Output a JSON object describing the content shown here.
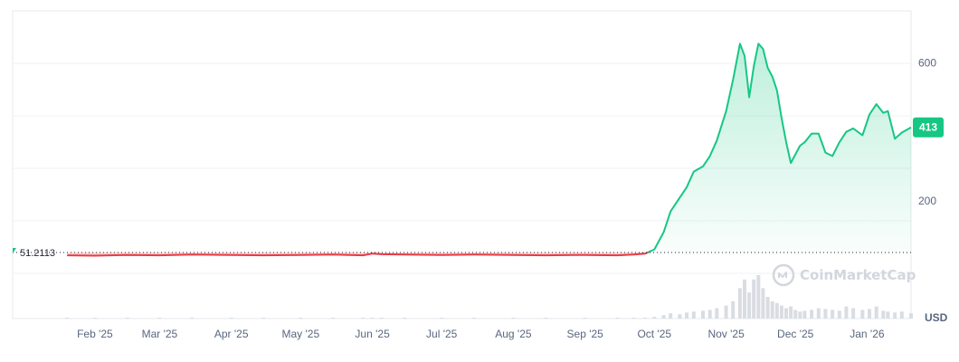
{
  "watermark": "CoinMarketCap",
  "currency": "USD",
  "colors": {
    "up": "#16c784",
    "down": "#ea3943",
    "grid": "#eff2f5",
    "frame": "#e6e9ee",
    "volume": "#d9dde3"
  },
  "chart_data": {
    "type": "line",
    "baseline": {
      "value": 51.2113,
      "label": "51.2113"
    },
    "current_price": {
      "value": 413,
      "label": "413"
    },
    "ylim": [
      -140,
      750
    ],
    "y_ticks": [
      {
        "value": 200,
        "label": "200"
      },
      {
        "value": 600,
        "label": "600"
      }
    ],
    "x_ticks": [
      {
        "date": "2025-02-01",
        "label": "Feb '25"
      },
      {
        "date": "2025-03-01",
        "label": "Mar '25"
      },
      {
        "date": "2025-04-01",
        "label": "Apr '25"
      },
      {
        "date": "2025-05-01",
        "label": "May '25"
      },
      {
        "date": "2025-06-01",
        "label": "Jun '25"
      },
      {
        "date": "2025-07-01",
        "label": "Jul '25"
      },
      {
        "date": "2025-08-01",
        "label": "Aug '25"
      },
      {
        "date": "2025-09-01",
        "label": "Sep '25"
      },
      {
        "date": "2025-10-01",
        "label": "Oct '25"
      },
      {
        "date": "2025-11-01",
        "label": "Nov '25"
      },
      {
        "date": "2025-12-01",
        "label": "Dec '25"
      },
      {
        "date": "2026-01-01",
        "label": "Jan '26"
      }
    ],
    "xlim": [
      "2025-01-16",
      "2026-01-20"
    ],
    "series": [
      {
        "x": [
          "2025-01-20",
          "2025-02-01",
          "2025-02-15",
          "2025-03-01",
          "2025-03-15",
          "2025-04-01",
          "2025-04-15",
          "2025-05-01",
          "2025-05-15",
          "2025-05-28",
          "2025-06-01",
          "2025-06-05",
          "2025-06-15",
          "2025-07-01",
          "2025-07-15",
          "2025-08-01",
          "2025-08-15",
          "2025-09-01",
          "2025-09-15",
          "2025-09-22",
          "2025-09-27",
          "2025-10-01",
          "2025-10-05",
          "2025-10-08",
          "2025-10-12",
          "2025-10-15",
          "2025-10-18",
          "2025-10-22",
          "2025-10-25",
          "2025-10-28",
          "2025-11-01",
          "2025-11-04",
          "2025-11-07",
          "2025-11-09",
          "2025-11-11",
          "2025-11-13",
          "2025-11-15",
          "2025-11-17",
          "2025-11-19",
          "2025-11-21",
          "2025-11-23",
          "2025-11-25",
          "2025-11-27",
          "2025-11-29",
          "2025-12-01",
          "2025-12-03",
          "2025-12-05",
          "2025-12-08",
          "2025-12-11",
          "2025-12-14",
          "2025-12-17",
          "2025-12-20",
          "2025-12-23",
          "2025-12-26",
          "2025-12-30",
          "2026-01-02",
          "2026-01-05",
          "2026-01-08",
          "2026-01-10",
          "2026-01-13",
          "2026-01-16",
          "2026-01-20"
        ],
        "y": [
          43,
          42,
          44,
          43,
          45,
          44,
          43,
          44,
          45,
          43,
          48,
          46,
          45,
          44,
          45,
          44,
          43,
          44,
          43,
          45,
          48,
          60,
          110,
          170,
          210,
          240,
          285,
          300,
          330,
          375,
          460,
          550,
          655,
          620,
          500,
          590,
          655,
          640,
          585,
          560,
          520,
          440,
          370,
          310,
          335,
          360,
          370,
          395,
          395,
          340,
          330,
          370,
          400,
          410,
          390,
          450,
          480,
          455,
          460,
          380,
          398,
          413
        ]
      }
    ],
    "volume": [
      1,
      1,
      1,
      1,
      1,
      1,
      1,
      1,
      1,
      1,
      1,
      1,
      1,
      1,
      1,
      1,
      1,
      1,
      1,
      1,
      1,
      2,
      4,
      6,
      5,
      7,
      8,
      9,
      10,
      12,
      15,
      20,
      35,
      45,
      30,
      45,
      50,
      35,
      25,
      20,
      18,
      15,
      12,
      14,
      10,
      8,
      9,
      10,
      12,
      11,
      10,
      9,
      14,
      12,
      10,
      11,
      14,
      9,
      8,
      7,
      8,
      6
    ]
  }
}
